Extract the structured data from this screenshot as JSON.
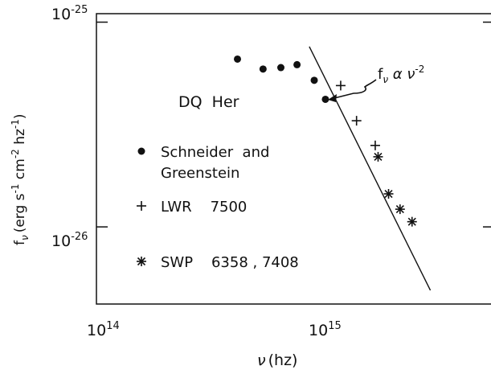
{
  "chart_data": {
    "type": "scatter",
    "title": "",
    "xlabel": {
      "prefix": "ν",
      "rest": "(hz)"
    },
    "ylabel": {
      "fnu": "f",
      "nu": "ν",
      "main": "(erg s",
      "e1": "-1",
      "cm": " cm",
      "e2": "-2",
      "hz": " hz",
      "e3": "-1",
      "close": ")"
    },
    "xscale": "log",
    "yscale": "log",
    "xlim": [
      52000000000000.0,
      6000000000000000.0
    ],
    "ylim": [
      4.2e-27,
      1.1e-25
    ],
    "x_ticks": [
      {
        "base": "10",
        "exp": "14",
        "value": 100000000000000.0
      },
      {
        "base": "10",
        "exp": "15",
        "value": 1000000000000000.0
      }
    ],
    "y_ticks": [
      {
        "base": "10",
        "exp": "-25",
        "value": 1e-25
      },
      {
        "base": "10",
        "exp": "-26",
        "value": 1e-26
      }
    ],
    "object_label": "DQ  Her",
    "annotation": {
      "f": "f",
      "sub": "ν",
      "alpha": " α ",
      "nu": "ν",
      "exp": "-2"
    },
    "series": [
      {
        "name_lines": [
          "Schneider  and",
          "Greenstein"
        ],
        "marker": "circle",
        "points": [
          [
            280000000000000.0,
            6.6e-26
          ],
          [
            380000000000000.0,
            5.9e-26
          ],
          [
            470000000000000.0,
            6e-26
          ],
          [
            570000000000000.0,
            6.2e-26
          ],
          [
            700000000000000.0,
            5.2e-26
          ],
          [
            800000000000000.0,
            4.2e-26
          ]
        ]
      },
      {
        "name_lines": [
          "LWR    7500"
        ],
        "marker": "plus",
        "points": [
          [
            960000000000000.0,
            4.9e-26
          ],
          [
            1160000000000000.0,
            3.3e-26
          ],
          [
            1450000000000000.0,
            2.5e-26
          ]
        ]
      },
      {
        "name_lines": [
          "SWP    6358 , 7408"
        ],
        "marker": "asterisk",
        "points": [
          [
            1500000000000000.0,
            2.2e-26
          ],
          [
            1700000000000000.0,
            1.45e-26
          ],
          [
            1950000000000000.0,
            1.22e-26
          ],
          [
            2250000000000000.0,
            1.06e-26
          ]
        ]
      }
    ],
    "fit_line": {
      "x": [
        660000000000000.0,
        2800000000000000.0
      ],
      "y": [
        7.6e-26,
        4.9e-27
      ],
      "slope": -2
    }
  }
}
